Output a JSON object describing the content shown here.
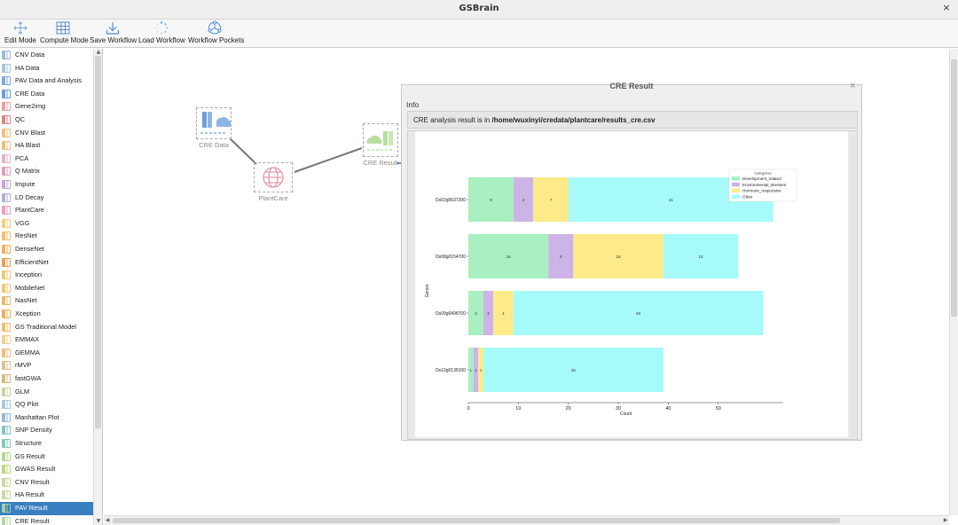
{
  "window": {
    "title": "GSBrain",
    "close_label": "×"
  },
  "toolbar": {
    "items": [
      {
        "label": "Edit Mode",
        "icon": "move-icon"
      },
      {
        "label": "Compute Mode",
        "icon": "grid-icon"
      },
      {
        "label": "Save Workflow",
        "icon": "download-icon"
      },
      {
        "label": "Load Workflow",
        "icon": "spinner-icon"
      },
      {
        "label": "Workflow Pockets",
        "icon": "network-icon"
      }
    ]
  },
  "sidebar": {
    "selected_index": 35,
    "items": [
      {
        "label": "CNV Data",
        "color": "#9bb8d6"
      },
      {
        "label": "HA Data",
        "color": "#a8c4e0"
      },
      {
        "label": "PAV Data and Analysis",
        "color": "#7fa9d9"
      },
      {
        "label": "CRE Data",
        "color": "#6b9fd6"
      },
      {
        "label": "Gene2img",
        "color": "#e9a0a0"
      },
      {
        "label": "QC",
        "color": "#d98585"
      },
      {
        "label": "CNV Blast",
        "color": "#f0c080"
      },
      {
        "label": "HA Blast",
        "color": "#f0c080"
      },
      {
        "label": "PCA",
        "color": "#e6b3c9"
      },
      {
        "label": "Q Matrix",
        "color": "#d9a0c0"
      },
      {
        "label": "Impute",
        "color": "#c9a0d9"
      },
      {
        "label": "LD Decay",
        "color": "#b0b0d9"
      },
      {
        "label": "PlantCare",
        "color": "#e8a0b8"
      },
      {
        "label": "VGG",
        "color": "#f0d080"
      },
      {
        "label": "ResNet",
        "color": "#f2c070"
      },
      {
        "label": "DenseNet",
        "color": "#f0b060"
      },
      {
        "label": "EfficientNet",
        "color": "#e8a050"
      },
      {
        "label": "Inception",
        "color": "#f0c878"
      },
      {
        "label": "MobileNet",
        "color": "#f0c878"
      },
      {
        "label": "NasNet",
        "color": "#e8b868"
      },
      {
        "label": "Xception",
        "color": "#e8b060"
      },
      {
        "label": "GS Traditional Model",
        "color": "#f0c070"
      },
      {
        "label": "EMMAX",
        "color": "#f0d090"
      },
      {
        "label": "GEMMA",
        "color": "#f0c080"
      },
      {
        "label": "rMVP",
        "color": "#e0c090"
      },
      {
        "label": "fastGWA",
        "color": "#d8b880"
      },
      {
        "label": "GLM",
        "color": "#c8d8a0"
      },
      {
        "label": "QQ Plot",
        "color": "#a8c8d8"
      },
      {
        "label": "Manhattan Plot",
        "color": "#98b8d8"
      },
      {
        "label": "SNP Density",
        "color": "#88c0c8"
      },
      {
        "label": "Structure",
        "color": "#80c8b8"
      },
      {
        "label": "GS Result",
        "color": "#b8d890"
      },
      {
        "label": "GWAS Result",
        "color": "#c0d880"
      },
      {
        "label": "CNV Result",
        "color": "#c8d8a0"
      },
      {
        "label": "HA Result",
        "color": "#c8d8a0"
      },
      {
        "label": "PAV Result",
        "color": "#a8d0a0"
      },
      {
        "label": "CRE Result",
        "color": "#b0d8a0"
      }
    ]
  },
  "canvas": {
    "nodes": [
      {
        "label": "CRE Data",
        "icon": "cre-data-icon"
      },
      {
        "label": "PlantCare",
        "icon": "plantcare-icon"
      },
      {
        "label": "CRE Result",
        "icon": "cre-result-icon"
      }
    ]
  },
  "dialog": {
    "title": "CRE Result",
    "close_label": "×",
    "info_heading": "Info",
    "path_prefix": "CRE analysis result is in ",
    "path_value": "/home/wuxinyi/credata/plantcare/results_cre.csv"
  },
  "chart_data": {
    "type": "bar",
    "orientation": "horizontal",
    "stacked": true,
    "categories": [
      "Os02g0637200",
      "Os08g0154700",
      "Os09g0498700",
      "Os10g0135100"
    ],
    "series": [
      {
        "name": "Development_related",
        "color": "#a8f0c0",
        "values": [
          9,
          16,
          3,
          1
        ]
      },
      {
        "name": "Environmental_stresses",
        "color": "#cdb4e6",
        "values": [
          4,
          5,
          2,
          1
        ]
      },
      {
        "name": "Hormone_responsive",
        "color": "#fdeb8a",
        "values": [
          7,
          18,
          4,
          1
        ]
      },
      {
        "name": "Other",
        "color": "#a6fafa",
        "values": [
          41,
          15,
          50,
          36
        ]
      }
    ],
    "xlabel": "Count",
    "ylabel": "Genes",
    "xticks": [
      0,
      10,
      20,
      30,
      40,
      50
    ],
    "xlim": [
      0,
      63
    ],
    "legend": {
      "title": "Categories",
      "placement": "top-right"
    },
    "grid": false
  }
}
